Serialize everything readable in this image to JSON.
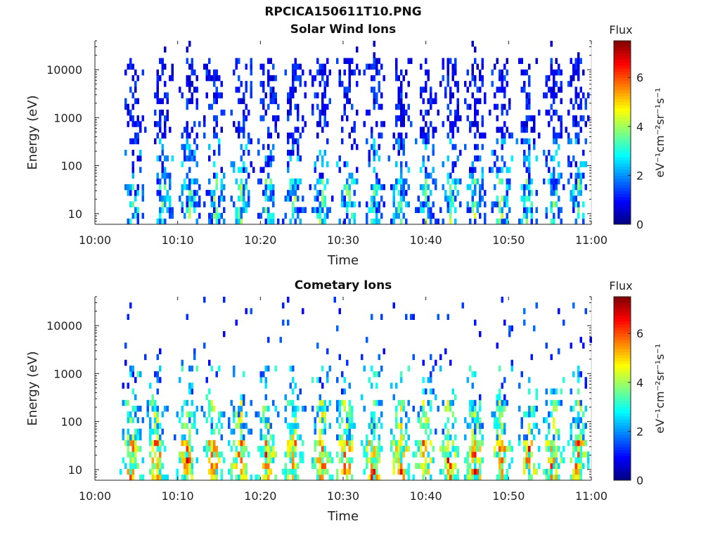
{
  "figure": {
    "title": "RPCICA150611T10.PNG"
  },
  "colors": {
    "axis": "#222222",
    "colormap": "jet"
  },
  "chart_data": [
    {
      "type": "heatmap",
      "title": "Solar Wind Ions",
      "xlabel": "Time",
      "ylabel": "Energy (eV)",
      "x_ticks": [
        "10:00",
        "10:10",
        "10:20",
        "10:30",
        "10:40",
        "10:50",
        "11:00"
      ],
      "x_range_minutes": [
        0,
        60
      ],
      "y_scale": "log",
      "y_ticks": [
        10,
        100,
        1000,
        10000
      ],
      "y_tick_labels": [
        "10",
        "100",
        "1000",
        "10000"
      ],
      "ylim": [
        6,
        40000
      ],
      "colorbar": {
        "label": "Flux",
        "unit": "eV⁻¹cm⁻²sr⁻¹s⁻¹",
        "ticks": [
          0,
          2,
          4,
          6
        ],
        "range": [
          0,
          7.5
        ]
      },
      "bursts_minute": [
        4.6,
        8.2,
        11.3,
        14.4,
        17.6,
        20.8,
        24.0,
        27.2,
        30.5,
        33.6,
        36.8,
        40.0,
        42.9,
        45.8,
        49.0,
        52.2,
        55.3,
        58.2
      ],
      "features": {
        "low_energy_band_eV": [
          10,
          60
        ],
        "peak_flux": 4.5,
        "high_energy_sparse_to_eV": 20000
      }
    },
    {
      "type": "heatmap",
      "title": "Cometary Ions",
      "xlabel": "Time",
      "ylabel": "Energy (eV)",
      "x_ticks": [
        "10:00",
        "10:10",
        "10:20",
        "10:30",
        "10:40",
        "10:50",
        "11:00"
      ],
      "x_range_minutes": [
        0,
        60
      ],
      "y_scale": "log",
      "y_ticks": [
        10,
        100,
        1000,
        10000
      ],
      "y_tick_labels": [
        "10",
        "100",
        "1000",
        "10000"
      ],
      "ylim": [
        6,
        40000
      ],
      "colorbar": {
        "label": "Flux",
        "unit": "eV⁻¹cm⁻²sr⁻¹s⁻¹",
        "ticks": [
          0,
          2,
          4,
          6
        ],
        "range": [
          0,
          7.5
        ]
      },
      "bursts_minute": [
        4.3,
        7.3,
        11.0,
        14.2,
        17.4,
        20.7,
        23.8,
        27.3,
        30.2,
        33.5,
        36.8,
        39.7,
        42.6,
        45.8,
        49.0,
        52.3,
        55.2,
        58.3
      ],
      "features": {
        "core_energy_eV": [
          8,
          45
        ],
        "peak_flux": 7.2,
        "extended_to_eV": 1000
      }
    }
  ]
}
